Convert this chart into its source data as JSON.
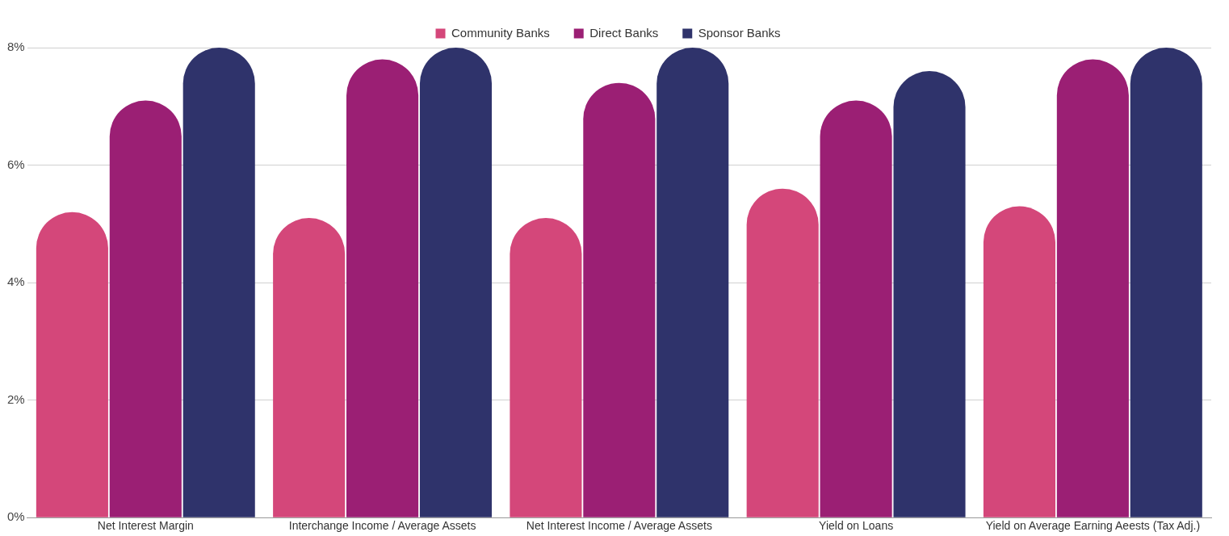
{
  "chart_data": {
    "type": "bar",
    "categories": [
      "Net Interest Margin",
      "Interchange Income / Average Assets",
      "Net Interest Income / Average Assets",
      "Yield on Loans",
      "Yield on Average Earning Aeests (Tax Adj.)"
    ],
    "series": [
      {
        "name": "Community Banks",
        "color": "#d4477a",
        "values": [
          5.2,
          5.1,
          5.1,
          5.6,
          5.3
        ]
      },
      {
        "name": "Direct Banks",
        "color": "#9b1f74",
        "values": [
          7.1,
          7.8,
          7.4,
          7.1,
          7.8
        ]
      },
      {
        "name": "Sponsor Banks",
        "color": "#2f336b",
        "values": [
          8.0,
          8.0,
          8.0,
          7.6,
          8.0
        ]
      }
    ],
    "ylim": [
      0,
      8
    ],
    "yticks": [
      {
        "value": 0,
        "label": "0%"
      },
      {
        "value": 2,
        "label": "2%"
      },
      {
        "value": 4,
        "label": "4%"
      },
      {
        "value": 6,
        "label": "6%"
      },
      {
        "value": 8,
        "label": "8%"
      }
    ],
    "grid": "y",
    "legend": "top"
  }
}
